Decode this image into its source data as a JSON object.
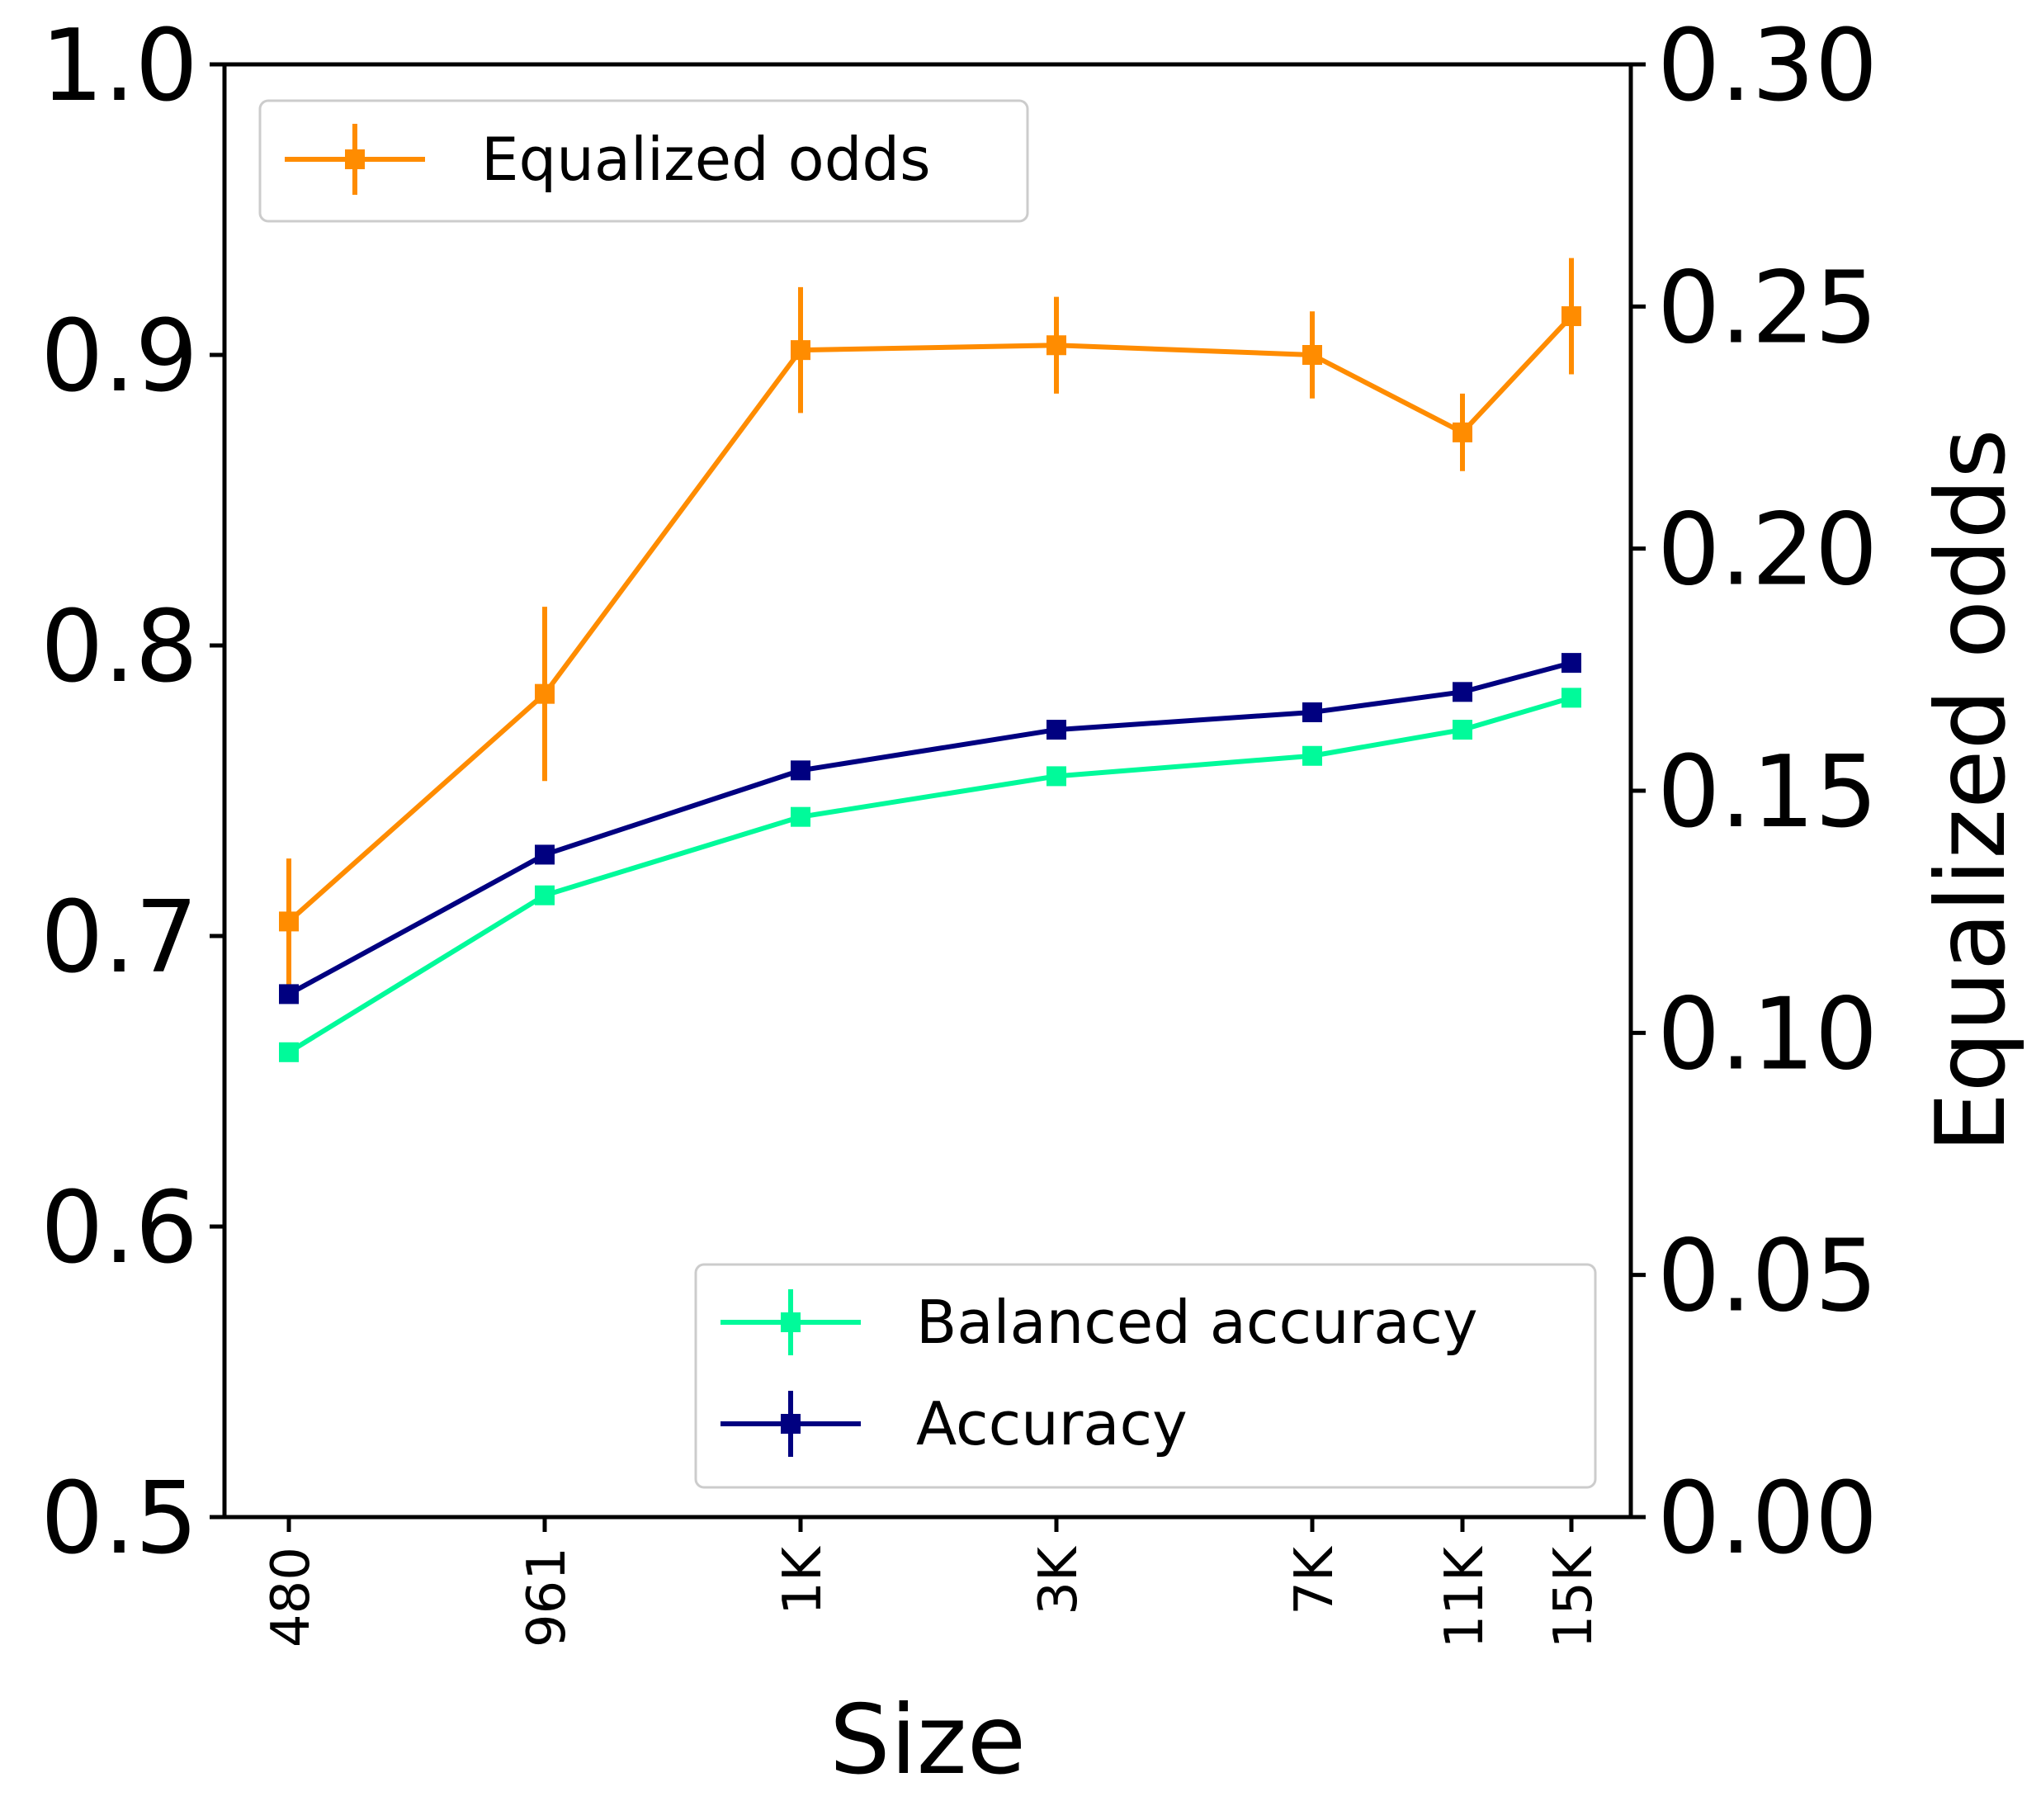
{
  "chart_data": {
    "type": "line",
    "xlabel": "Size",
    "ylabel_right": "Equalized odds",
    "categories": [
      "480",
      "961",
      "1K",
      "3K",
      "7K",
      "11K",
      "15K"
    ],
    "ylim_left": [
      0.5,
      1.0
    ],
    "yticks_left": [
      "0.5",
      "0.6",
      "0.7",
      "0.8",
      "0.9",
      "1.0"
    ],
    "ylim_right": [
      0.0,
      0.3
    ],
    "yticks_right": [
      "0.00",
      "0.05",
      "0.10",
      "0.15",
      "0.20",
      "0.25",
      "0.30"
    ],
    "grid": false,
    "series": [
      {
        "name": "Equalized odds",
        "axis": "right",
        "color": "#ff8c00",
        "values": [
          0.123,
          0.17,
          0.241,
          0.242,
          0.24,
          0.224,
          0.248
        ],
        "errors": [
          0.013,
          0.018,
          0.013,
          0.01,
          0.009,
          0.008,
          0.012
        ]
      },
      {
        "name": "Balanced accuracy",
        "axis": "left",
        "color": "#00fa9a",
        "values": [
          0.66,
          0.714,
          0.741,
          0.755,
          0.762,
          0.771,
          0.782
        ],
        "errors": [
          0.002,
          0.002,
          0.002,
          0.002,
          0.002,
          0.002,
          0.002
        ]
      },
      {
        "name": "Accuracy",
        "axis": "left",
        "color": "#000080",
        "values": [
          0.68,
          0.728,
          0.757,
          0.771,
          0.777,
          0.784,
          0.794
        ],
        "errors": [
          0.002,
          0.002,
          0.002,
          0.002,
          0.002,
          0.002,
          0.002
        ]
      }
    ],
    "legends": [
      {
        "placement": "upper-left",
        "series": [
          "Equalized odds"
        ]
      },
      {
        "placement": "lower-right",
        "series": [
          "Balanced accuracy",
          "Accuracy"
        ]
      }
    ]
  }
}
